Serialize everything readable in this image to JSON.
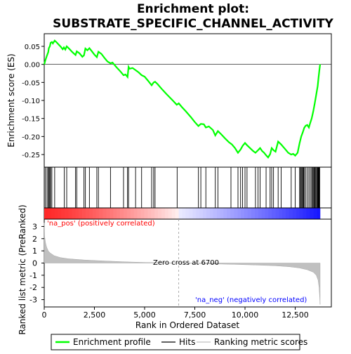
{
  "chart_data": {
    "type": "line",
    "title_line1": "Enrichment plot:",
    "title_line2": "SUBSTRATE_SPECIFIC_CHANNEL_ACTIVITY",
    "top_panel": {
      "ylabel": "Enrichment score (ES)",
      "ylim": [
        -0.285,
        0.085
      ],
      "yticks": [
        0.05,
        0.0,
        -0.05,
        -0.1,
        -0.15,
        -0.2,
        -0.25
      ],
      "ytick_labels": [
        "0.05",
        "0.00",
        "-0.05",
        "-0.10",
        "-0.15",
        "-0.20",
        "-0.25"
      ],
      "line_color": "#00ff00",
      "es_profile": [
        [
          0,
          0.0
        ],
        [
          60,
          0.012
        ],
        [
          120,
          0.022
        ],
        [
          200,
          0.034
        ],
        [
          230,
          0.045
        ],
        [
          280,
          0.05
        ],
        [
          320,
          0.06
        ],
        [
          380,
          0.062
        ],
        [
          430,
          0.058
        ],
        [
          520,
          0.066
        ],
        [
          600,
          0.062
        ],
        [
          700,
          0.056
        ],
        [
          820,
          0.049
        ],
        [
          920,
          0.042
        ],
        [
          980,
          0.047
        ],
        [
          1050,
          0.041
        ],
        [
          1120,
          0.05
        ],
        [
          1250,
          0.043
        ],
        [
          1400,
          0.034
        ],
        [
          1560,
          0.026
        ],
        [
          1620,
          0.036
        ],
        [
          1750,
          0.031
        ],
        [
          1900,
          0.021
        ],
        [
          1980,
          0.025
        ],
        [
          2050,
          0.044
        ],
        [
          2150,
          0.039
        ],
        [
          2250,
          0.045
        ],
        [
          2350,
          0.038
        ],
        [
          2500,
          0.027
        ],
        [
          2620,
          0.02
        ],
        [
          2700,
          0.035
        ],
        [
          2850,
          0.029
        ],
        [
          3000,
          0.018
        ],
        [
          3150,
          0.008
        ],
        [
          3300,
          0.003
        ],
        [
          3400,
          0.005
        ],
        [
          3600,
          -0.008
        ],
        [
          3800,
          -0.02
        ],
        [
          3950,
          -0.03
        ],
        [
          4050,
          -0.028
        ],
        [
          4150,
          -0.035
        ],
        [
          4200,
          -0.007
        ],
        [
          4250,
          -0.012
        ],
        [
          4400,
          -0.01
        ],
        [
          4550,
          -0.016
        ],
        [
          4700,
          -0.022
        ],
        [
          4850,
          -0.03
        ],
        [
          5000,
          -0.034
        ],
        [
          5150,
          -0.044
        ],
        [
          5350,
          -0.058
        ],
        [
          5450,
          -0.05
        ],
        [
          5520,
          -0.048
        ],
        [
          5650,
          -0.055
        ],
        [
          5850,
          -0.068
        ],
        [
          6100,
          -0.083
        ],
        [
          6400,
          -0.1
        ],
        [
          6600,
          -0.112
        ],
        [
          6700,
          -0.108
        ],
        [
          6850,
          -0.118
        ],
        [
          7050,
          -0.13
        ],
        [
          7300,
          -0.146
        ],
        [
          7500,
          -0.16
        ],
        [
          7680,
          -0.171
        ],
        [
          7800,
          -0.165
        ],
        [
          7950,
          -0.166
        ],
        [
          8050,
          -0.175
        ],
        [
          8200,
          -0.172
        ],
        [
          8400,
          -0.182
        ],
        [
          8520,
          -0.197
        ],
        [
          8650,
          -0.185
        ],
        [
          8800,
          -0.193
        ],
        [
          9000,
          -0.205
        ],
        [
          9200,
          -0.216
        ],
        [
          9350,
          -0.222
        ],
        [
          9500,
          -0.232
        ],
        [
          9650,
          -0.245
        ],
        [
          9780,
          -0.236
        ],
        [
          9880,
          -0.226
        ],
        [
          10000,
          -0.218
        ],
        [
          10100,
          -0.224
        ],
        [
          10250,
          -0.232
        ],
        [
          10400,
          -0.24
        ],
        [
          10520,
          -0.245
        ],
        [
          10650,
          -0.238
        ],
        [
          10750,
          -0.232
        ],
        [
          10850,
          -0.24
        ],
        [
          10950,
          -0.245
        ],
        [
          11050,
          -0.252
        ],
        [
          11150,
          -0.258
        ],
        [
          11250,
          -0.249
        ],
        [
          11330,
          -0.232
        ],
        [
          11420,
          -0.238
        ],
        [
          11520,
          -0.242
        ],
        [
          11650,
          -0.214
        ],
        [
          11800,
          -0.222
        ],
        [
          12000,
          -0.235
        ],
        [
          12150,
          -0.245
        ],
        [
          12300,
          -0.25
        ],
        [
          12400,
          -0.248
        ],
        [
          12500,
          -0.253
        ],
        [
          12620,
          -0.245
        ],
        [
          12720,
          -0.218
        ],
        [
          12800,
          -0.2
        ],
        [
          12880,
          -0.188
        ],
        [
          12950,
          -0.176
        ],
        [
          13020,
          -0.17
        ],
        [
          13100,
          -0.168
        ],
        [
          13180,
          -0.175
        ],
        [
          13250,
          -0.162
        ],
        [
          13320,
          -0.15
        ],
        [
          13400,
          -0.13
        ],
        [
          13480,
          -0.106
        ],
        [
          13560,
          -0.08
        ],
        [
          13620,
          -0.06
        ],
        [
          13660,
          -0.038
        ],
        [
          13700,
          -0.018
        ],
        [
          13740,
          0.0
        ]
      ]
    },
    "hits": [
      60,
      140,
      200,
      240,
      280,
      320,
      380,
      520,
      1000,
      1120,
      1560,
      1620,
      1980,
      2050,
      2250,
      2620,
      2700,
      3300,
      3950,
      4150,
      4200,
      4550,
      4850,
      5350,
      5450,
      5520,
      6620,
      7680,
      7800,
      8050,
      8520,
      8650,
      9300,
      9650,
      9780,
      9880,
      10000,
      10100,
      10520,
      10650,
      10750,
      11050,
      11250,
      11330,
      11420,
      11650,
      11800,
      12300,
      12500,
      12720,
      12760,
      12800,
      12840,
      12880,
      12920,
      12950,
      13020,
      13100,
      13180,
      13250,
      13320,
      13360,
      13400,
      13440,
      13480,
      13520,
      13560,
      13600,
      13620,
      13640,
      13660,
      13680,
      13700,
      13720
    ],
    "bottom_panel": {
      "ylabel": "Ranked list metric (PreRanked)",
      "ylim": [
        -3.6,
        3.6
      ],
      "yticks": [
        3,
        2,
        1,
        0,
        -1,
        -2,
        -3
      ],
      "ytick_labels": [
        "3",
        "2",
        "1",
        "0",
        "-1",
        "-2",
        "-3"
      ],
      "metric_curve": [
        [
          0,
          3.3
        ],
        [
          20,
          2.2
        ],
        [
          60,
          1.7
        ],
        [
          120,
          1.3
        ],
        [
          200,
          1.0
        ],
        [
          300,
          0.82
        ],
        [
          500,
          0.6
        ],
        [
          800,
          0.45
        ],
        [
          1200,
          0.35
        ],
        [
          2000,
          0.25
        ],
        [
          3000,
          0.17
        ],
        [
          4000,
          0.1
        ],
        [
          5000,
          0.05
        ],
        [
          6000,
          0.02
        ],
        [
          6700,
          0.0
        ],
        [
          7500,
          -0.03
        ],
        [
          8500,
          -0.07
        ],
        [
          9500,
          -0.11
        ],
        [
          10500,
          -0.16
        ],
        [
          11500,
          -0.22
        ],
        [
          12200,
          -0.3
        ],
        [
          12700,
          -0.4
        ],
        [
          13100,
          -0.55
        ],
        [
          13400,
          -0.75
        ],
        [
          13550,
          -1.0
        ],
        [
          13640,
          -1.4
        ],
        [
          13690,
          -2.0
        ],
        [
          13720,
          -2.8
        ],
        [
          13740,
          -3.4
        ]
      ],
      "pos_label": "'na_pos' (positively correlated)",
      "neg_label": "'na_neg' (negatively correlated)",
      "zero_cross_label": "Zero cross at 6700",
      "zero_cross": 6700,
      "pos_color": "#ff0000",
      "neg_color": "#0000ff"
    },
    "xlabel": "Rank in Ordered Dataset",
    "xlim": [
      0,
      14300
    ],
    "xticks": [
      0,
      2500,
      5000,
      7500,
      10000,
      12500
    ],
    "xtick_labels": [
      "0",
      "2,500",
      "5,000",
      "7,500",
      "10,000",
      "12,500"
    ],
    "n_genes": 13740,
    "legend": {
      "items": [
        "Enrichment profile",
        "Hits",
        "Ranking metric scores"
      ],
      "colors": [
        "#00ff00",
        "#000000",
        "#c0c0c0"
      ]
    }
  }
}
